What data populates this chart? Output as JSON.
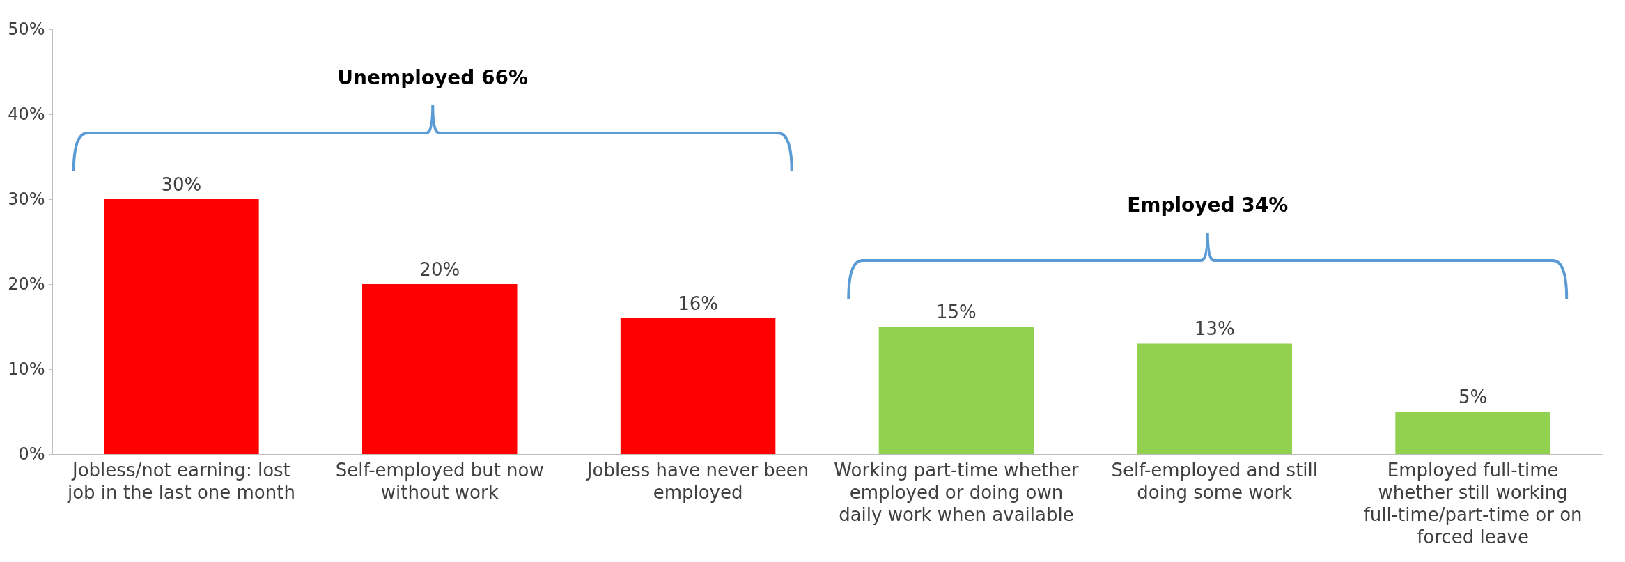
{
  "chart_data": {
    "type": "bar",
    "categories": [
      "Jobless/not earning: lost job in the last one month",
      "Self-employed but now without work",
      "Jobless have never been employed",
      "Working part-time whether employed or doing own daily work when available",
      "Self-employed and still doing some work",
      "Employed full-time whether still working full-time/part-time or on forced leave"
    ],
    "values": [
      30,
      20,
      16,
      15,
      13,
      5
    ],
    "colors": [
      "#ff0000",
      "#ff0000",
      "#ff0000",
      "#92d050",
      "#92d050",
      "#92d050"
    ],
    "value_labels": [
      "30%",
      "20%",
      "16%",
      "15%",
      "13%",
      "5%"
    ],
    "ylim": [
      0,
      50
    ],
    "yticks": [
      {
        "value": 0,
        "label": "0%"
      },
      {
        "value": 10,
        "label": "10%"
      },
      {
        "value": 20,
        "label": "20%"
      },
      {
        "value": 30,
        "label": "30%"
      },
      {
        "value": 40,
        "label": "40%"
      },
      {
        "value": 50,
        "label": "50%"
      }
    ],
    "annotations": [
      "Unemployed 66%",
      "Employed 34%"
    ],
    "grid": false
  }
}
